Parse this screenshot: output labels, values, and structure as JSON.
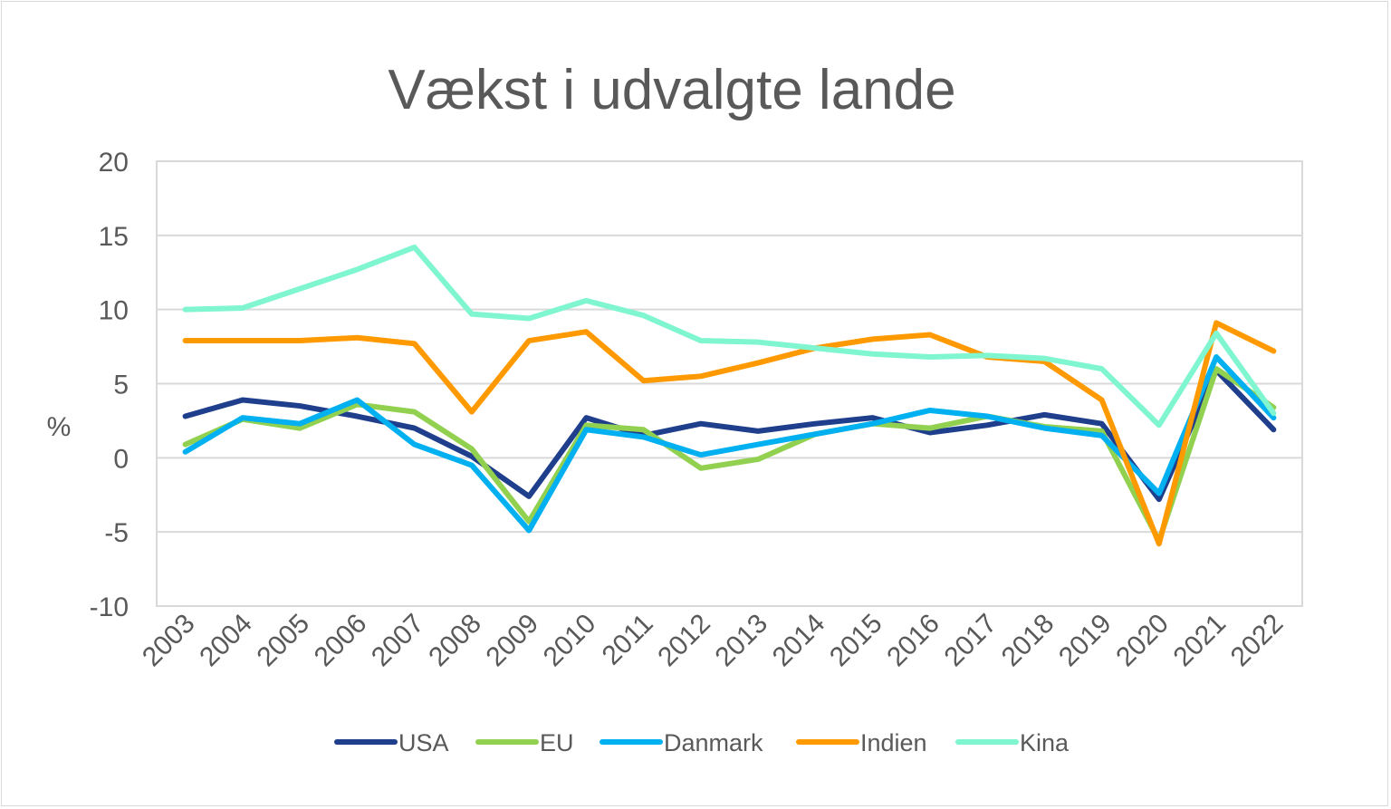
{
  "chart_data": {
    "type": "line",
    "title": "Vækst i udvalgte lande",
    "xlabel": "",
    "ylabel": "%",
    "ylim": [
      -10,
      20
    ],
    "yticks": [
      -10,
      -5,
      0,
      5,
      10,
      15,
      20
    ],
    "grid": true,
    "legend": "bottom",
    "x": [
      "2003",
      "2004",
      "2005",
      "2006",
      "2007",
      "2008",
      "2009",
      "2010",
      "2011",
      "2012",
      "2013",
      "2014",
      "2015",
      "2016",
      "2017",
      "2018",
      "2019",
      "2020",
      "2021",
      "2022"
    ],
    "series": [
      {
        "name": "USA",
        "color": "#1f3e8c",
        "values": [
          2.8,
          3.9,
          3.5,
          2.8,
          2.0,
          0.1,
          -2.6,
          2.7,
          1.5,
          2.3,
          1.8,
          2.3,
          2.7,
          1.7,
          2.2,
          2.9,
          2.3,
          -2.8,
          5.9,
          1.9
        ]
      },
      {
        "name": "EU",
        "color": "#92d050",
        "values": [
          0.9,
          2.6,
          2.0,
          3.6,
          3.1,
          0.6,
          -4.3,
          2.2,
          1.9,
          -0.7,
          -0.1,
          1.6,
          2.3,
          2.0,
          2.8,
          2.1,
          1.8,
          -5.6,
          6.0,
          3.4
        ]
      },
      {
        "name": "Danmark",
        "color": "#00b0f0",
        "values": [
          0.4,
          2.7,
          2.3,
          3.9,
          0.9,
          -0.5,
          -4.9,
          1.9,
          1.4,
          0.2,
          0.9,
          1.6,
          2.3,
          3.2,
          2.8,
          2.0,
          1.5,
          -2.4,
          6.8,
          2.7
        ]
      },
      {
        "name": "Indien",
        "color": "#ff9900",
        "values": [
          7.9,
          7.9,
          7.9,
          8.1,
          7.7,
          3.1,
          7.9,
          8.5,
          5.2,
          5.5,
          6.4,
          7.4,
          8.0,
          8.3,
          6.8,
          6.5,
          3.9,
          -5.8,
          9.1,
          7.2
        ]
      },
      {
        "name": "Kina",
        "color": "#7ff5d0",
        "values": [
          10.0,
          10.1,
          11.4,
          12.7,
          14.2,
          9.7,
          9.4,
          10.6,
          9.6,
          7.9,
          7.8,
          7.4,
          7.0,
          6.8,
          6.9,
          6.7,
          6.0,
          2.2,
          8.4,
          3.0
        ]
      }
    ]
  }
}
